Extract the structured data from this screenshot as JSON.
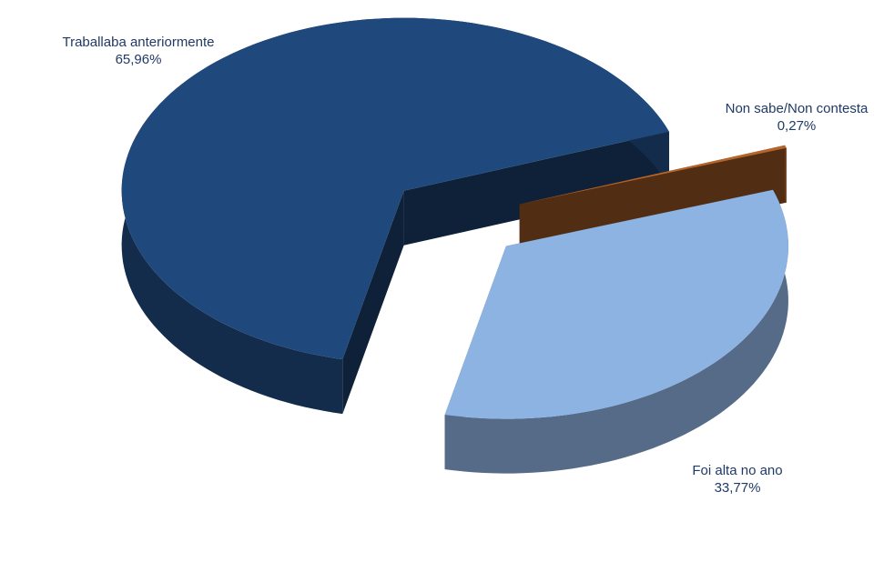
{
  "chart_data": {
    "type": "pie",
    "categories": [
      "Traballaba anteriormente",
      "Foi alta no ano",
      "Non sabe/Non contesta"
    ],
    "values": [
      65.96,
      33.77,
      0.27
    ],
    "value_labels": [
      "65,96%",
      "33,77%",
      "0,27%"
    ],
    "colors": [
      "#1f497d",
      "#8db3e2",
      "#b5652a"
    ]
  }
}
